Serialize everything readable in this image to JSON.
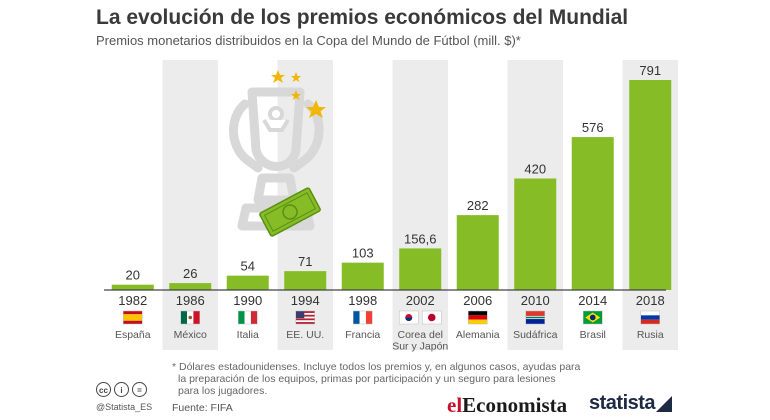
{
  "header": {
    "title": "La evolución de los premios económicos del Mundial",
    "subtitle": "Premios monetarios distribuidos en la Copa del Mundo de Fútbol (mill. $)*"
  },
  "chart_data": {
    "type": "bar",
    "title": "La evolución de los premios económicos del Mundial",
    "ylabel": "",
    "xlabel": "",
    "ylim": [
      0,
      791
    ],
    "categories": [
      "1982",
      "1986",
      "1990",
      "1994",
      "1998",
      "2002",
      "2006",
      "2010",
      "2014",
      "2018"
    ],
    "values": [
      20,
      26,
      54,
      71,
      103,
      156.6,
      282,
      420,
      576,
      791
    ],
    "value_labels": [
      "20",
      "26",
      "54",
      "71",
      "103",
      "156,6",
      "282",
      "420",
      "576",
      "791"
    ],
    "countries": [
      "España",
      "México",
      "Italia",
      "EE. UU.",
      "Francia",
      "Corea del Sur y Japón",
      "Alemania",
      "Sudáfrica",
      "Brasil",
      "Rusia"
    ],
    "country_lines": [
      [
        "España"
      ],
      [
        "México"
      ],
      [
        "Italia"
      ],
      [
        "EE. UU."
      ],
      [
        "Francia"
      ],
      [
        "Corea del",
        "Sur y Japón"
      ],
      [
        "Alemania"
      ],
      [
        "Sudáfrica"
      ],
      [
        "Brasil"
      ],
      [
        "Rusia"
      ]
    ],
    "flag_icons": [
      "spain-flag-icon",
      "mexico-flag-icon",
      "italy-flag-icon",
      "usa-flag-icon",
      "france-flag-icon",
      "korea-japan-flag-icon",
      "germany-flag-icon",
      "south-africa-flag-icon",
      "brazil-flag-icon",
      "russia-flag-icon"
    ],
    "bar_color": "#86bc25",
    "column_shade": "#ececec",
    "grid": false
  },
  "footnote": {
    "line1": "* Dólares estadounidenses. Incluye todos los premios y, en algunos casos, ayudas para",
    "line2": "la preparación de los equipos, primas por participación y un seguro para lesiones",
    "line3": "para los jugadores."
  },
  "footer": {
    "handle": "@Statista_ES",
    "source": "Fuente: FIFA",
    "logo_ec_el": "el",
    "logo_ec_rest": "Economista",
    "logo_statista": "statista",
    "cc_icons": [
      "cc",
      "i",
      "="
    ]
  },
  "decoration": {
    "icons": [
      "trophy-icon",
      "star-icon",
      "banknote-icon"
    ]
  }
}
